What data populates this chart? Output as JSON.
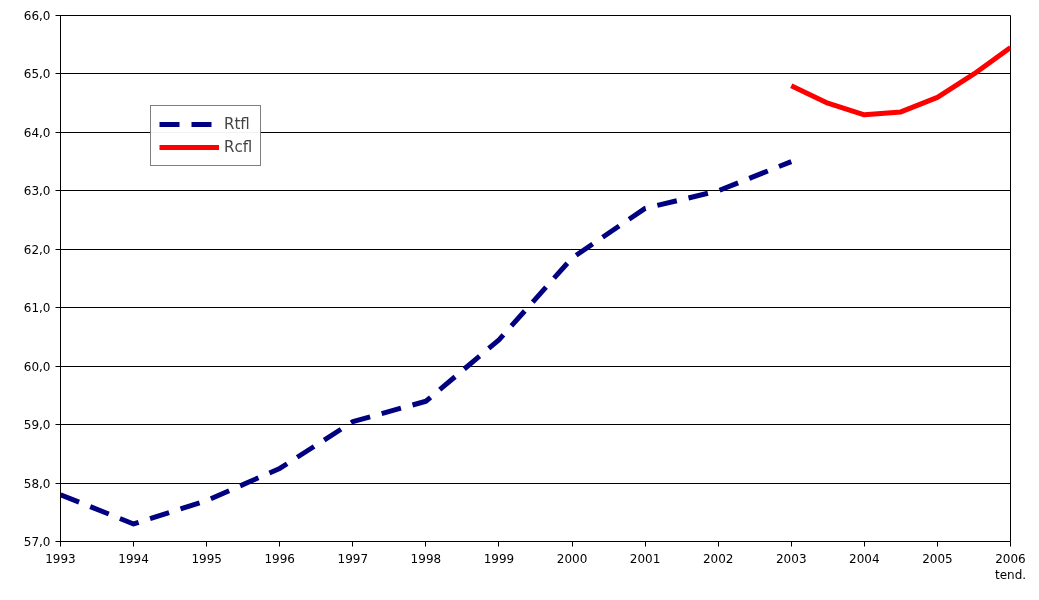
{
  "chart_data": {
    "type": "line",
    "x": [
      1993,
      1994,
      1995,
      1996,
      1997,
      1998,
      1999,
      2000,
      2001,
      2002,
      2003
    ],
    "series": [
      {
        "name": "Rtfl",
        "color": "#000080",
        "line_style": "dashed",
        "values": [
          57.8,
          57.3,
          57.7,
          58.25,
          59.05,
          59.4,
          60.45,
          61.85,
          62.7,
          63.0,
          63.5
        ]
      },
      {
        "name": "Rcfl",
        "color": "#ff0000",
        "line_style": "solid",
        "x": [
          2003,
          2003.5,
          2004,
          2004.5,
          2005,
          2005.5,
          2006
        ],
        "values": [
          64.8,
          64.5,
          64.3,
          64.35,
          64.6,
          65.0,
          65.45
        ]
      }
    ],
    "xlim": [
      1993,
      2006
    ],
    "xticks": [
      1993,
      1994,
      1995,
      1996,
      1997,
      1998,
      1999,
      2000,
      2001,
      2002,
      2003,
      2004,
      2005,
      {
        "value": 2006,
        "label": "2006\ntend."
      }
    ],
    "ylim": [
      57,
      66
    ],
    "yticks": [
      {
        "value": 57,
        "label": "57,0"
      },
      {
        "value": 58,
        "label": "58,0"
      },
      {
        "value": 59,
        "label": "59,0"
      },
      {
        "value": 60,
        "label": "60,0"
      },
      {
        "value": 61,
        "label": "61,0"
      },
      {
        "value": 62,
        "label": "62,0"
      },
      {
        "value": 63,
        "label": "63,0"
      },
      {
        "value": 64,
        "label": "64,0"
      },
      {
        "value": 65,
        "label": "65,0"
      },
      {
        "value": 66,
        "label": "66,0"
      }
    ],
    "grid": "y",
    "legend": "top left",
    "marker": "none"
  }
}
